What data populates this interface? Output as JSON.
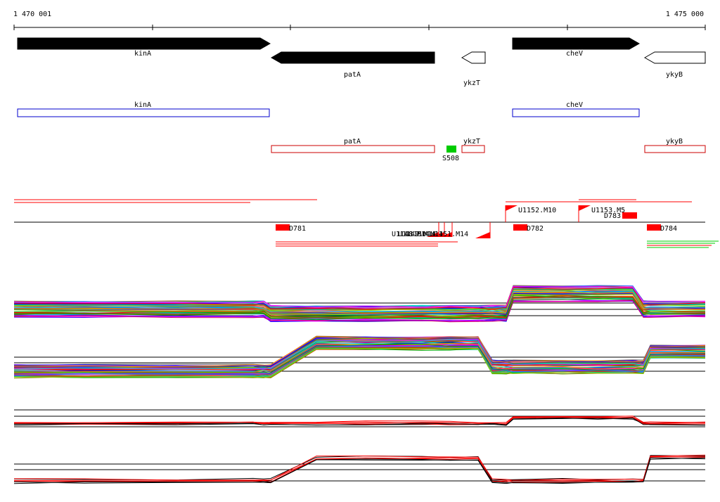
{
  "ruler": {
    "start_label": "1 470 001",
    "end_label": "1 475 000"
  },
  "genes": [
    {
      "name": "kinA",
      "strand": "+",
      "fill": "#000000"
    },
    {
      "name": "patA",
      "strand": "-",
      "fill": "#000000"
    },
    {
      "name": "ykzT",
      "strand": "-",
      "fill": "#ffffff"
    },
    {
      "name": "cheV",
      "strand": "+",
      "fill": "#000000"
    },
    {
      "name": "ykyB",
      "strand": "-",
      "fill": "#ffffff"
    }
  ],
  "cds_boxes": {
    "plus": [
      {
        "label": "kinA",
        "color": "#0000cc"
      },
      {
        "label": "cheV",
        "color": "#0000cc"
      }
    ],
    "minus": [
      {
        "label": "patA",
        "color": "#cc0000"
      },
      {
        "label": "ykzT",
        "color": "#cc0000"
      },
      {
        "label": "ykyB",
        "color": "#cc0000"
      }
    ]
  },
  "site": {
    "label": "S508",
    "color": "#00cc00"
  },
  "upstream_features": [
    {
      "label": "U1152.M10"
    },
    {
      "label": "U1153.M5"
    }
  ],
  "downstream_features": [
    {
      "label": "U1148.M14"
    },
    {
      "label": "U1149.M14"
    },
    {
      "label": "U1150.M14"
    },
    {
      "label": "U1151.M14"
    }
  ],
  "blocks": [
    {
      "label": "D781"
    },
    {
      "label": "D782"
    },
    {
      "label": "D783"
    },
    {
      "label": "D784"
    }
  ],
  "colors": {
    "accent": "#ff0000",
    "site": "#00cc00",
    "cds_plus": "#0000cc",
    "cds_minus": "#cc0000"
  }
}
